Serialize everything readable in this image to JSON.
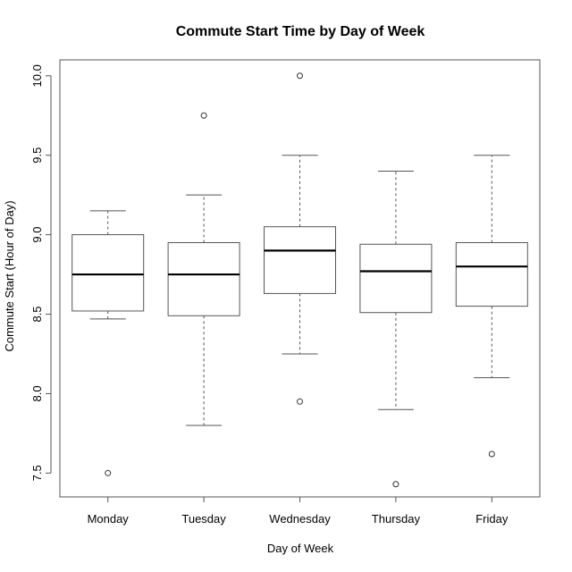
{
  "chart_data": {
    "type": "boxplot",
    "title": "Commute Start Time by Day of Week",
    "xlabel": "Day of Week",
    "ylabel": "Commute Start (Hour of Day)",
    "ylim": [
      7.35,
      10.1
    ],
    "yticks": [
      "7.5",
      "8.0",
      "8.5",
      "9.0",
      "9.5",
      "10.0"
    ],
    "grid": false,
    "categories": [
      "Monday",
      "Tuesday",
      "Wednesday",
      "Thursday",
      "Friday"
    ],
    "boxes": [
      {
        "category": "Monday",
        "whisker_low": 8.47,
        "q1": 8.52,
        "median": 8.75,
        "q3": 9.0,
        "whisker_high": 9.15,
        "outliers": [
          7.5
        ]
      },
      {
        "category": "Tuesday",
        "whisker_low": 7.8,
        "q1": 8.49,
        "median": 8.75,
        "q3": 8.95,
        "whisker_high": 9.25,
        "outliers": [
          9.75
        ]
      },
      {
        "category": "Wednesday",
        "whisker_low": 8.25,
        "q1": 8.63,
        "median": 8.9,
        "q3": 9.05,
        "whisker_high": 9.5,
        "outliers": [
          7.95,
          10.0
        ]
      },
      {
        "category": "Thursday",
        "whisker_low": 7.9,
        "q1": 8.51,
        "median": 8.77,
        "q3": 8.94,
        "whisker_high": 9.4,
        "outliers": [
          7.43
        ]
      },
      {
        "category": "Friday",
        "whisker_low": 8.1,
        "q1": 8.55,
        "median": 8.8,
        "q3": 8.95,
        "whisker_high": 9.5,
        "outliers": [
          7.62
        ]
      }
    ]
  }
}
